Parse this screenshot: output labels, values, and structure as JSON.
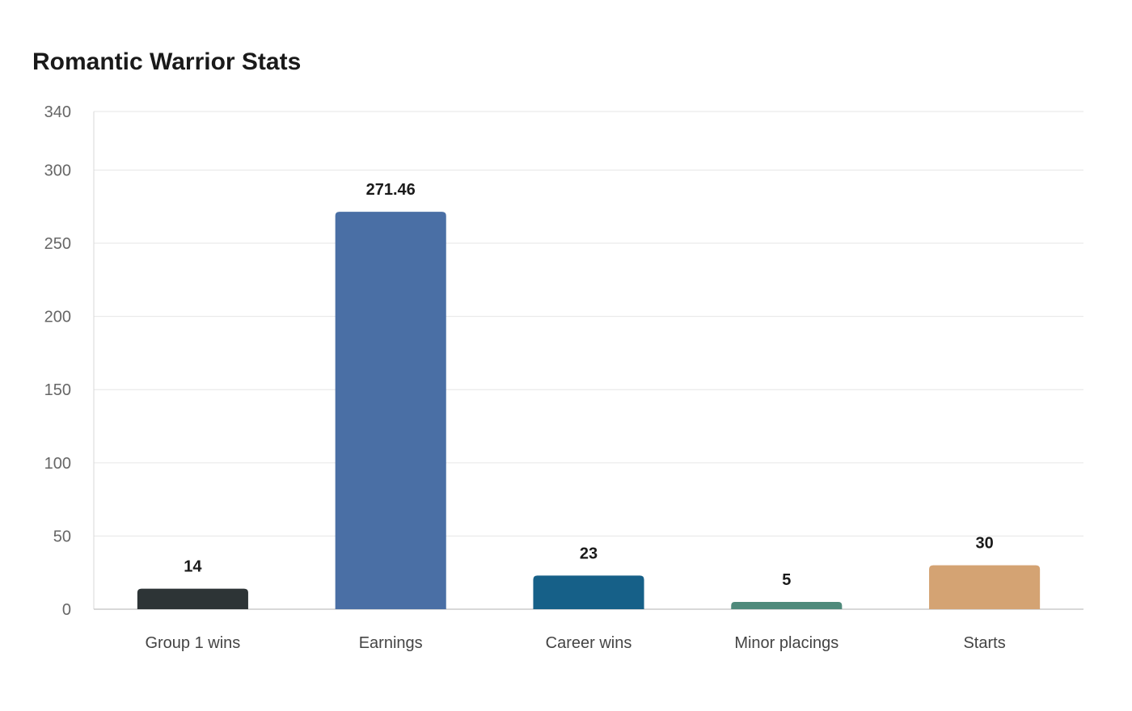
{
  "chart_data": {
    "type": "bar",
    "title": "Romantic Warrior Stats",
    "xlabel": "",
    "ylabel": "",
    "categories": [
      "Group 1 wins",
      "Earnings",
      "Career wins",
      "Minor placings",
      "Starts"
    ],
    "values": [
      14,
      271.46,
      23,
      5,
      30
    ],
    "value_labels": [
      "14",
      "271.46",
      "23",
      "5",
      "30"
    ],
    "colors": [
      "#2d3436",
      "#4a6fa5",
      "#166088",
      "#4f8a7b",
      "#d4a373"
    ],
    "ylim": [
      0,
      340
    ],
    "yticks": [
      0,
      50,
      100,
      150,
      200,
      250,
      300,
      340
    ],
    "ytick_labels": [
      "0",
      "50",
      "100",
      "150",
      "200",
      "250",
      "300",
      "340"
    ],
    "grid": true,
    "legend": "none"
  }
}
